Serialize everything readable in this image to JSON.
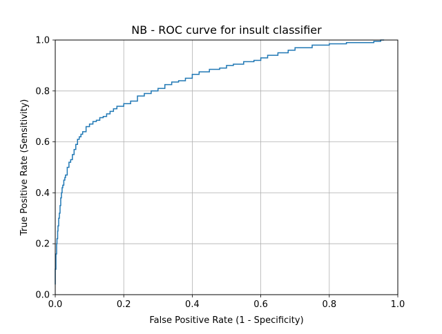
{
  "chart_data": {
    "type": "line",
    "title": "NB - ROC curve for insult classifier",
    "xlabel": "False Positive Rate (1 - Specificity)",
    "ylabel": "True Positive Rate (Sensitivity)",
    "xlim": [
      0.0,
      1.0
    ],
    "ylim": [
      0.0,
      1.0
    ],
    "xticks": [
      "0.0",
      "0.2",
      "0.4",
      "0.6",
      "0.8",
      "1.0"
    ],
    "yticks": [
      "0.0",
      "0.2",
      "0.4",
      "0.6",
      "0.8",
      "1.0"
    ],
    "grid": true,
    "series": [
      {
        "color": "#1f77b4",
        "x": [
          0.0,
          0.0,
          0.002,
          0.004,
          0.005,
          0.007,
          0.008,
          0.01,
          0.012,
          0.014,
          0.016,
          0.018,
          0.02,
          0.022,
          0.025,
          0.028,
          0.03,
          0.035,
          0.04,
          0.045,
          0.05,
          0.055,
          0.06,
          0.065,
          0.07,
          0.075,
          0.08,
          0.09,
          0.1,
          0.11,
          0.12,
          0.13,
          0.14,
          0.15,
          0.16,
          0.17,
          0.18,
          0.2,
          0.22,
          0.24,
          0.26,
          0.28,
          0.3,
          0.32,
          0.34,
          0.36,
          0.38,
          0.4,
          0.42,
          0.45,
          0.48,
          0.5,
          0.52,
          0.55,
          0.58,
          0.6,
          0.62,
          0.65,
          0.68,
          0.7,
          0.75,
          0.8,
          0.85,
          0.9,
          0.93,
          0.95,
          0.96
        ],
        "y": [
          0.04,
          0.1,
          0.16,
          0.2,
          0.22,
          0.25,
          0.27,
          0.3,
          0.32,
          0.35,
          0.38,
          0.4,
          0.42,
          0.43,
          0.45,
          0.46,
          0.47,
          0.5,
          0.52,
          0.53,
          0.55,
          0.57,
          0.59,
          0.61,
          0.62,
          0.63,
          0.64,
          0.66,
          0.67,
          0.68,
          0.685,
          0.695,
          0.7,
          0.71,
          0.72,
          0.73,
          0.74,
          0.75,
          0.76,
          0.78,
          0.79,
          0.8,
          0.81,
          0.825,
          0.835,
          0.84,
          0.85,
          0.865,
          0.875,
          0.885,
          0.89,
          0.9,
          0.905,
          0.915,
          0.92,
          0.93,
          0.94,
          0.95,
          0.96,
          0.97,
          0.98,
          0.985,
          0.99,
          0.99,
          0.995,
          1.0,
          1.0
        ]
      }
    ]
  }
}
